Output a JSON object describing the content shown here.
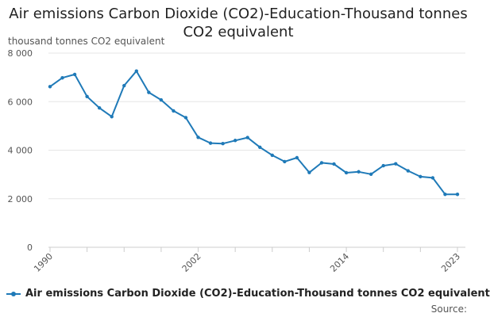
{
  "chart_data": {
    "type": "line",
    "title": "Air emissions Carbon Dioxide (CO2)-Education-Thousand tonnes CO2 equivalent",
    "ylabel": "thousand tonnes CO2 equivalent",
    "xlabel": "",
    "x": [
      1990,
      1991,
      1992,
      1993,
      1994,
      1995,
      1996,
      1997,
      1998,
      1999,
      2000,
      2001,
      2002,
      2003,
      2004,
      2005,
      2006,
      2007,
      2008,
      2009,
      2010,
      2011,
      2012,
      2013,
      2014,
      2015,
      2016,
      2017,
      2018,
      2019,
      2020,
      2021,
      2022,
      2023
    ],
    "series": [
      {
        "name": "Air emissions Carbon Dioxide (CO2)-Education-Thousand tonnes CO2 equivalent",
        "values": [
          6620,
          6980,
          7120,
          6210,
          5740,
          5380,
          6660,
          7260,
          6380,
          6070,
          5620,
          5340,
          4530,
          4290,
          4270,
          4400,
          4520,
          4120,
          3790,
          3530,
          3690,
          3080,
          3480,
          3430,
          3070,
          3110,
          3010,
          3360,
          3440,
          3150,
          2910,
          2860,
          2180,
          2180
        ]
      }
    ],
    "xlim": [
      1990,
      2023
    ],
    "ylim": [
      0,
      8000
    ],
    "yticks": [
      0,
      2000,
      4000,
      6000,
      8000
    ],
    "ytick_labels": [
      "0",
      "2 000",
      "4 000",
      "6 000",
      "8 000"
    ],
    "xticks_labeled": [
      1990,
      2002,
      2014,
      2023
    ],
    "xticks_minor": [
      1993,
      1996,
      1999,
      2005,
      2008,
      2011,
      2017,
      2020
    ],
    "grid": "horizontal",
    "legend_position": "bottom-left",
    "source_label": "Source:",
    "colors": {
      "series": "#1f7ab8",
      "grid": "#e6e6e6",
      "axis": "#cccccc"
    }
  }
}
